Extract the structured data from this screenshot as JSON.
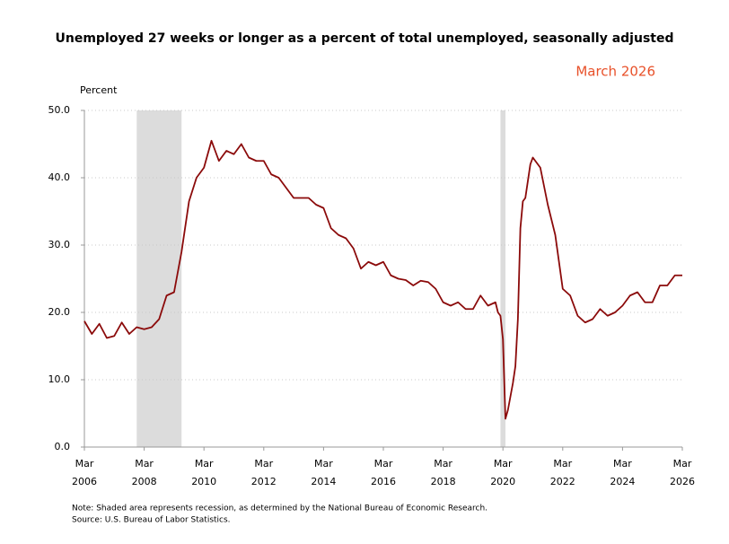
{
  "chart_data": {
    "type": "line",
    "title": "Unemployed 27 weeks or longer as a percent of total unemployed, seasonally adjusted",
    "badge": "March 2026",
    "y_label": "Percent",
    "notes": [
      "Note: Shaded area represents recession, as determined by the National Bureau of Economic Research.",
      "Source: U.S. Bureau of Labor Statistics."
    ],
    "ylim": [
      0,
      50
    ],
    "yticks": [
      {
        "value": 0,
        "label": "0.0"
      },
      {
        "value": 10,
        "label": "10.0"
      },
      {
        "value": 20,
        "label": "20.0"
      },
      {
        "value": 30,
        "label": "30.0"
      },
      {
        "value": 40,
        "label": "40.0"
      },
      {
        "value": 50,
        "label": "50.0"
      }
    ],
    "xlim": [
      "2006-03",
      "2026-03"
    ],
    "xticks": [
      {
        "value": "2006-03",
        "label": [
          "Mar",
          "2006"
        ]
      },
      {
        "value": "2008-03",
        "label": [
          "Mar",
          "2008"
        ]
      },
      {
        "value": "2010-03",
        "label": [
          "Mar",
          "2010"
        ]
      },
      {
        "value": "2012-03",
        "label": [
          "Mar",
          "2012"
        ]
      },
      {
        "value": "2014-03",
        "label": [
          "Mar",
          "2014"
        ]
      },
      {
        "value": "2016-03",
        "label": [
          "Mar",
          "2016"
        ]
      },
      {
        "value": "2018-03",
        "label": [
          "Mar",
          "2018"
        ]
      },
      {
        "value": "2020-03",
        "label": [
          "Mar",
          "2020"
        ]
      },
      {
        "value": "2022-03",
        "label": [
          "Mar",
          "2022"
        ]
      },
      {
        "value": "2024-03",
        "label": [
          "Mar",
          "2024"
        ]
      },
      {
        "value": "2026-03",
        "label": [
          "Mar",
          "2026"
        ]
      }
    ],
    "grid": true,
    "recessions": [
      [
        "2007-12",
        "2009-06"
      ],
      [
        "2020-02",
        "2020-04"
      ]
    ],
    "recession_color": "#dcdcdc",
    "color": "#8b0a0a",
    "x": [
      "2006-03",
      "2006-06",
      "2006-09",
      "2006-12",
      "2007-03",
      "2007-06",
      "2007-09",
      "2007-12",
      "2008-03",
      "2008-06",
      "2008-09",
      "2008-12",
      "2009-03",
      "2009-06",
      "2009-09",
      "2009-12",
      "2010-03",
      "2010-06",
      "2010-09",
      "2010-12",
      "2011-03",
      "2011-06",
      "2011-09",
      "2011-12",
      "2012-03",
      "2012-06",
      "2012-09",
      "2012-12",
      "2013-03",
      "2013-06",
      "2013-09",
      "2013-12",
      "2014-03",
      "2014-06",
      "2014-09",
      "2014-12",
      "2015-03",
      "2015-06",
      "2015-09",
      "2015-12",
      "2016-03",
      "2016-06",
      "2016-09",
      "2016-12",
      "2017-03",
      "2017-06",
      "2017-09",
      "2017-12",
      "2018-03",
      "2018-06",
      "2018-09",
      "2018-12",
      "2019-03",
      "2019-06",
      "2019-09",
      "2019-12",
      "2020-01",
      "2020-02",
      "2020-03",
      "2020-04",
      "2020-05",
      "2020-06",
      "2020-07",
      "2020-08",
      "2020-09",
      "2020-10",
      "2020-11",
      "2020-12",
      "2021-01",
      "2021-02",
      "2021-03",
      "2021-06",
      "2021-09",
      "2021-12",
      "2022-03",
      "2022-06",
      "2022-09",
      "2022-12",
      "2023-03",
      "2023-06",
      "2023-09",
      "2023-12",
      "2024-03",
      "2024-06",
      "2024-09",
      "2024-12",
      "2025-03",
      "2025-06",
      "2025-09",
      "2025-12",
      "2026-03"
    ],
    "values": [
      18.7,
      16.8,
      18.3,
      16.2,
      16.5,
      18.5,
      16.8,
      17.8,
      17.5,
      17.8,
      19.0,
      22.5,
      23.0,
      29.0,
      36.5,
      40.0,
      41.5,
      45.5,
      42.5,
      44.0,
      43.5,
      45.0,
      43.0,
      42.5,
      42.5,
      40.5,
      40.0,
      38.5,
      37.0,
      37.0,
      37.0,
      36.0,
      35.5,
      32.5,
      31.5,
      31.0,
      29.5,
      26.5,
      27.5,
      27.0,
      27.5,
      25.5,
      25.0,
      24.8,
      24.0,
      24.7,
      24.5,
      23.5,
      21.5,
      21.0,
      21.5,
      20.5,
      20.5,
      22.5,
      21.0,
      21.5,
      20.0,
      19.5,
      16.0,
      4.2,
      5.5,
      7.5,
      9.5,
      12.0,
      19.0,
      32.5,
      36.5,
      37.0,
      39.5,
      42.0,
      43.0,
      41.5,
      36.0,
      31.5,
      23.5,
      22.5,
      19.5,
      18.5,
      19.0,
      20.5,
      19.5,
      20.0,
      21.0,
      22.5,
      23.0,
      21.5,
      21.5,
      24.0,
      24.0,
      25.5,
      25.5
    ]
  }
}
